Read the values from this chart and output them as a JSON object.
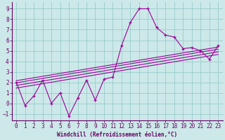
{
  "xlabel": "Windchill (Refroidissement éolien,°C)",
  "xlim": [
    -0.5,
    23.5
  ],
  "ylim": [
    -1.6,
    9.6
  ],
  "xticks": [
    0,
    1,
    2,
    3,
    4,
    5,
    6,
    7,
    8,
    9,
    10,
    11,
    12,
    13,
    14,
    15,
    16,
    17,
    18,
    19,
    20,
    21,
    22,
    23
  ],
  "yticks": [
    -1,
    0,
    1,
    2,
    3,
    4,
    5,
    6,
    7,
    8,
    9
  ],
  "bg_color": "#cce8e8",
  "grid_color": "#99cccc",
  "line_color": "#990099",
  "scatter_x": [
    0,
    1,
    2,
    3,
    4,
    5,
    6,
    7,
    8,
    9,
    10,
    11,
    12,
    13,
    14,
    15,
    16,
    17,
    18,
    19,
    20,
    21,
    22,
    23
  ],
  "scatter_y": [
    2.0,
    -0.2,
    0.7,
    2.2,
    0.0,
    1.0,
    -1.2,
    0.5,
    2.2,
    0.3,
    2.3,
    2.5,
    5.5,
    7.7,
    9.0,
    9.0,
    7.2,
    6.5,
    6.3,
    5.2,
    5.3,
    5.0,
    4.2,
    5.5
  ],
  "trend_lines": [
    [
      [
        0,
        23
      ],
      [
        1.95,
        5.15
      ]
    ],
    [
      [
        0,
        23
      ],
      [
        1.7,
        4.9
      ]
    ],
    [
      [
        0,
        23
      ],
      [
        2.15,
        5.35
      ]
    ],
    [
      [
        0,
        23
      ],
      [
        1.45,
        4.65
      ]
    ]
  ],
  "spine_color": "#660066",
  "tick_color": "#660066",
  "tick_fontsize": 5.5,
  "xlabel_fontsize": 5.5,
  "xlabel_color": "#660066"
}
